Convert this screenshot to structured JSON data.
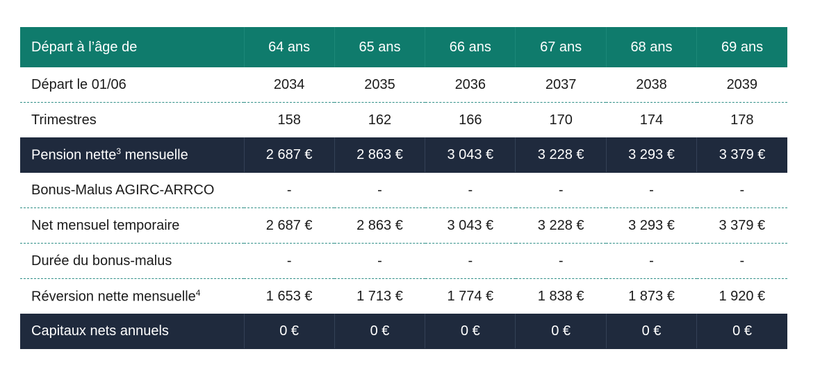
{
  "table": {
    "header": {
      "label": "Départ à l’âge de",
      "columns": [
        "64 ans",
        "65 ans",
        "66 ans",
        "67 ans",
        "68 ans",
        "69 ans"
      ]
    },
    "rows": [
      {
        "label": "Départ le 01/06",
        "values": [
          "2034",
          "2035",
          "2036",
          "2037",
          "2038",
          "2039"
        ]
      },
      {
        "label": "Trimestres",
        "values": [
          "158",
          "162",
          "166",
          "170",
          "174",
          "178"
        ]
      },
      {
        "label": "Pension nette",
        "note": "3",
        "label_end": " mensuelle",
        "highlight": true,
        "values": [
          "2 687 €",
          "2 863 €",
          "3 043 €",
          "3 228 €",
          "3 293 €",
          "3 379 €"
        ]
      },
      {
        "label": "Bonus-Malus AGIRC-ARRCO",
        "values": [
          "-",
          "-",
          "-",
          "-",
          "-",
          "-"
        ]
      },
      {
        "label": "Net mensuel temporaire",
        "values": [
          "2 687 €",
          "2 863 €",
          "3 043 €",
          "3 228 €",
          "3 293 €",
          "3 379 €"
        ]
      },
      {
        "label": "Durée du bonus-malus",
        "values": [
          "-",
          "-",
          "-",
          "-",
          "-",
          "-"
        ]
      },
      {
        "label": "Réversion nette mensuelle",
        "note": "4",
        "values": [
          "1 653 €",
          "1 713 €",
          "1 774 €",
          "1 838 €",
          "1 873 €",
          "1 920 €"
        ]
      },
      {
        "label": "Capitaux nets annuels",
        "highlight": true,
        "values": [
          "0 €",
          "0 €",
          "0 €",
          "0 €",
          "0 €",
          "0 €"
        ]
      }
    ]
  }
}
